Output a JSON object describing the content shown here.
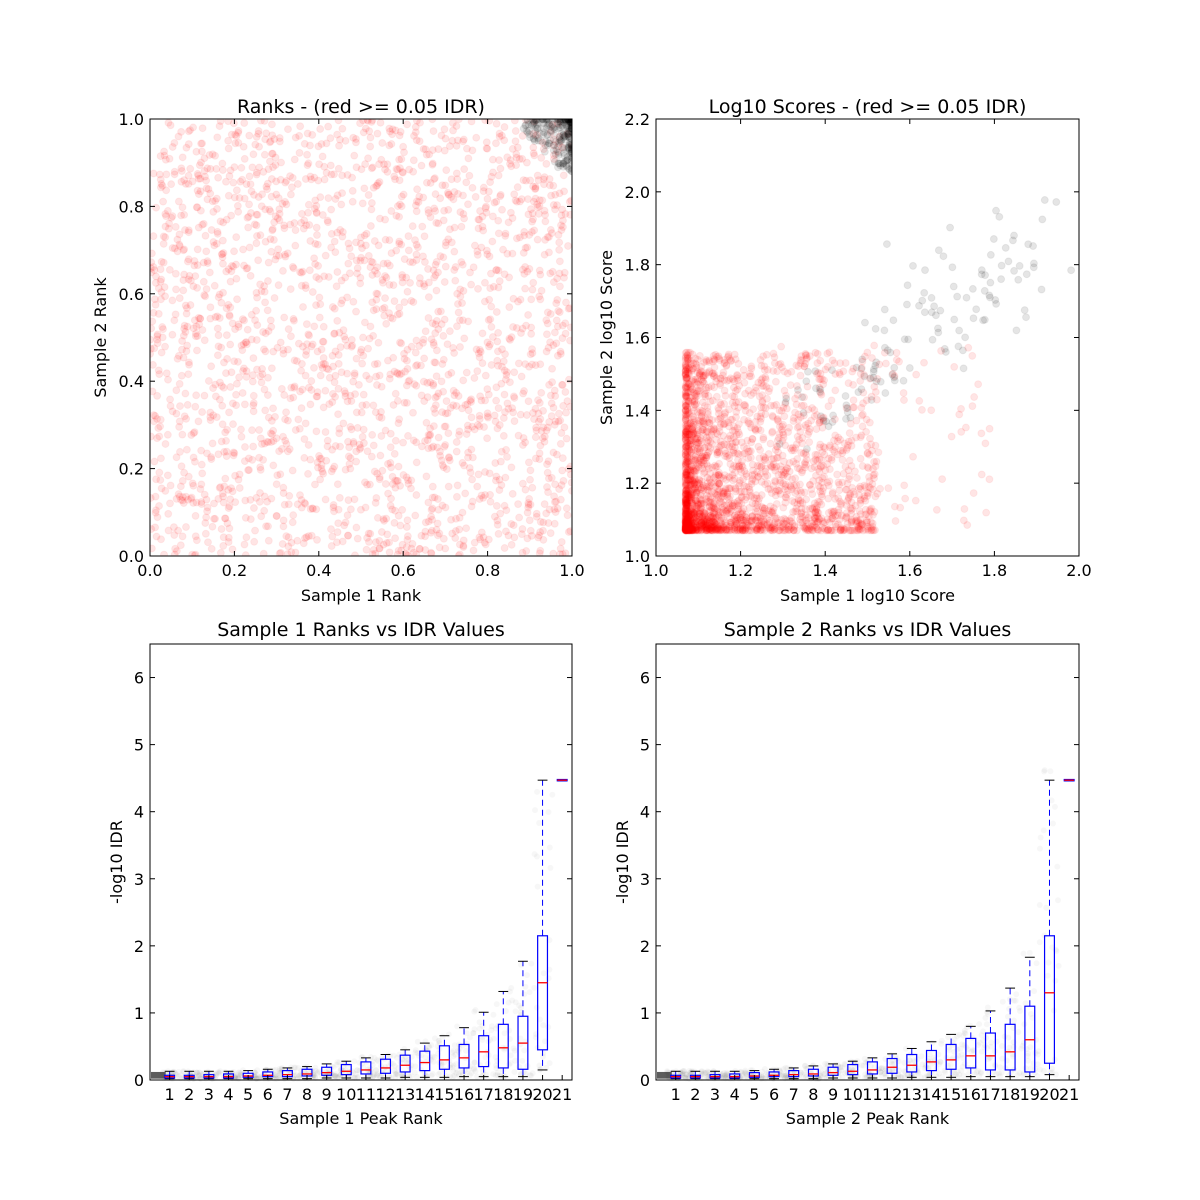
{
  "colors": {
    "pass": "#000000",
    "fail": "#ff0000",
    "box": "#0000ff",
    "median": "#ff0000",
    "frame": "#000000"
  },
  "chart_data": [
    {
      "id": "ranks",
      "type": "scatter",
      "title": "Ranks - (red >= 0.05 IDR)",
      "xlabel": "Sample 1 Rank",
      "ylabel": "Sample 2 Rank",
      "xlim": [
        0.0,
        1.0
      ],
      "ylim": [
        0.0,
        1.0
      ],
      "xticks": [
        "0.0",
        "0.2",
        "0.4",
        "0.6",
        "0.8",
        "1.0"
      ],
      "yticks": [
        "0.0",
        "0.2",
        "0.4",
        "0.6",
        "0.8",
        "1.0"
      ],
      "series": [
        {
          "color": "fail",
          "alpha": 0.1,
          "count": 2200,
          "distribution": "uniform",
          "x_range": [
            0.0,
            1.0
          ],
          "y_range": [
            0.0,
            1.0
          ]
        },
        {
          "color": "pass",
          "alpha": 0.1,
          "count": 260,
          "distribution": "corner-cluster",
          "x_range": [
            0.88,
            1.0
          ],
          "y_range": [
            0.88,
            1.0
          ]
        }
      ]
    },
    {
      "id": "scores",
      "type": "scatter",
      "title": "Log10 Scores - (red >= 0.05 IDR)",
      "xlabel": "Sample 1 log10 Score",
      "ylabel": "Sample 2 log10 Score",
      "xlim": [
        1.0,
        2.0
      ],
      "ylim": [
        1.0,
        2.2
      ],
      "xticks": [
        "1.0",
        "1.2",
        "1.4",
        "1.6",
        "1.8",
        "2.0"
      ],
      "yticks": [
        "1.0",
        "1.2",
        "1.4",
        "1.6",
        "1.8",
        "2.0",
        "2.2"
      ],
      "series": [
        {
          "color": "fail",
          "alpha": 0.1,
          "count": 2300,
          "distribution": "skewed",
          "x_range": [
            1.07,
            1.8
          ],
          "y_range": [
            1.07,
            1.86
          ]
        },
        {
          "color": "pass",
          "alpha": 0.1,
          "count": 130,
          "distribution": "diagonal",
          "x_range": [
            1.35,
            1.9
          ],
          "y_range": [
            1.38,
            1.98
          ]
        }
      ]
    },
    {
      "id": "idr1",
      "type": "box",
      "title": "Sample 1 Ranks vs IDR Values",
      "xlabel": "Sample 1 Peak Rank",
      "ylabel": "-log10 IDR",
      "ylim": [
        0,
        6.5
      ],
      "yticks": [
        "0",
        "1",
        "2",
        "3",
        "4",
        "5",
        "6"
      ],
      "categories": [
        "1",
        "2",
        "3",
        "4",
        "5",
        "6",
        "7",
        "8",
        "9",
        "10",
        "11",
        "12",
        "13",
        "14",
        "15",
        "16",
        "17",
        "18",
        "19",
        "20",
        "21"
      ],
      "boxes": [
        {
          "q1": 0.03,
          "med": 0.05,
          "q3": 0.07,
          "lo": 0.02,
          "hi": 0.13
        },
        {
          "q1": 0.03,
          "med": 0.05,
          "q3": 0.07,
          "lo": 0.02,
          "hi": 0.13
        },
        {
          "q1": 0.03,
          "med": 0.05,
          "q3": 0.08,
          "lo": 0.02,
          "hi": 0.13
        },
        {
          "q1": 0.03,
          "med": 0.05,
          "q3": 0.09,
          "lo": 0.02,
          "hi": 0.13
        },
        {
          "q1": 0.04,
          "med": 0.06,
          "q3": 0.1,
          "lo": 0.02,
          "hi": 0.14
        },
        {
          "q1": 0.05,
          "med": 0.07,
          "q3": 0.12,
          "lo": 0.02,
          "hi": 0.16
        },
        {
          "q1": 0.05,
          "med": 0.08,
          "q3": 0.14,
          "lo": 0.02,
          "hi": 0.18
        },
        {
          "q1": 0.06,
          "med": 0.09,
          "q3": 0.16,
          "lo": 0.02,
          "hi": 0.2
        },
        {
          "q1": 0.07,
          "med": 0.11,
          "q3": 0.19,
          "lo": 0.03,
          "hi": 0.24
        },
        {
          "q1": 0.08,
          "med": 0.13,
          "q3": 0.23,
          "lo": 0.03,
          "hi": 0.28
        },
        {
          "q1": 0.09,
          "med": 0.15,
          "q3": 0.27,
          "lo": 0.03,
          "hi": 0.33
        },
        {
          "q1": 0.1,
          "med": 0.18,
          "q3": 0.31,
          "lo": 0.03,
          "hi": 0.38
        },
        {
          "q1": 0.12,
          "med": 0.22,
          "q3": 0.37,
          "lo": 0.04,
          "hi": 0.45
        },
        {
          "q1": 0.14,
          "med": 0.26,
          "q3": 0.43,
          "lo": 0.04,
          "hi": 0.55
        },
        {
          "q1": 0.16,
          "med": 0.3,
          "q3": 0.51,
          "lo": 0.04,
          "hi": 0.66
        },
        {
          "q1": 0.18,
          "med": 0.33,
          "q3": 0.53,
          "lo": 0.05,
          "hi": 0.78
        },
        {
          "q1": 0.2,
          "med": 0.42,
          "q3": 0.66,
          "lo": 0.05,
          "hi": 1.01
        },
        {
          "q1": 0.18,
          "med": 0.48,
          "q3": 0.83,
          "lo": 0.05,
          "hi": 1.32
        },
        {
          "q1": 0.16,
          "med": 0.55,
          "q3": 0.95,
          "lo": 0.05,
          "hi": 1.77
        },
        {
          "q1": 0.45,
          "med": 1.45,
          "q3": 2.15,
          "lo": 0.15,
          "hi": 4.47
        },
        {
          "q1": 4.46,
          "med": 4.47,
          "q3": 4.48,
          "lo": 4.46,
          "hi": 4.48
        }
      ]
    },
    {
      "id": "idr2",
      "type": "box",
      "title": "Sample 2 Ranks vs IDR Values",
      "xlabel": "Sample 2 Peak Rank",
      "ylabel": "-log10 IDR",
      "ylim": [
        0,
        6.5
      ],
      "yticks": [
        "0",
        "1",
        "2",
        "3",
        "4",
        "5",
        "6"
      ],
      "categories": [
        "1",
        "2",
        "3",
        "4",
        "5",
        "6",
        "7",
        "8",
        "9",
        "10",
        "11",
        "12",
        "13",
        "14",
        "15",
        "16",
        "17",
        "18",
        "19",
        "20",
        "21"
      ],
      "boxes": [
        {
          "q1": 0.03,
          "med": 0.05,
          "q3": 0.07,
          "lo": 0.02,
          "hi": 0.13
        },
        {
          "q1": 0.03,
          "med": 0.05,
          "q3": 0.07,
          "lo": 0.02,
          "hi": 0.13
        },
        {
          "q1": 0.03,
          "med": 0.05,
          "q3": 0.08,
          "lo": 0.02,
          "hi": 0.13
        },
        {
          "q1": 0.03,
          "med": 0.05,
          "q3": 0.09,
          "lo": 0.02,
          "hi": 0.13
        },
        {
          "q1": 0.04,
          "med": 0.06,
          "q3": 0.11,
          "lo": 0.02,
          "hi": 0.14
        },
        {
          "q1": 0.05,
          "med": 0.07,
          "q3": 0.12,
          "lo": 0.02,
          "hi": 0.16
        },
        {
          "q1": 0.05,
          "med": 0.08,
          "q3": 0.14,
          "lo": 0.02,
          "hi": 0.18
        },
        {
          "q1": 0.06,
          "med": 0.09,
          "q3": 0.16,
          "lo": 0.02,
          "hi": 0.21
        },
        {
          "q1": 0.07,
          "med": 0.11,
          "q3": 0.19,
          "lo": 0.03,
          "hi": 0.24
        },
        {
          "q1": 0.08,
          "med": 0.13,
          "q3": 0.23,
          "lo": 0.03,
          "hi": 0.28
        },
        {
          "q1": 0.09,
          "med": 0.15,
          "q3": 0.27,
          "lo": 0.03,
          "hi": 0.33
        },
        {
          "q1": 0.1,
          "med": 0.19,
          "q3": 0.32,
          "lo": 0.03,
          "hi": 0.39
        },
        {
          "q1": 0.12,
          "med": 0.22,
          "q3": 0.38,
          "lo": 0.04,
          "hi": 0.47
        },
        {
          "q1": 0.14,
          "med": 0.27,
          "q3": 0.44,
          "lo": 0.04,
          "hi": 0.57
        },
        {
          "q1": 0.16,
          "med": 0.3,
          "q3": 0.53,
          "lo": 0.04,
          "hi": 0.68
        },
        {
          "q1": 0.18,
          "med": 0.36,
          "q3": 0.62,
          "lo": 0.05,
          "hi": 0.8
        },
        {
          "q1": 0.15,
          "med": 0.36,
          "q3": 0.7,
          "lo": 0.05,
          "hi": 1.03
        },
        {
          "q1": 0.15,
          "med": 0.42,
          "q3": 0.83,
          "lo": 0.05,
          "hi": 1.37
        },
        {
          "q1": 0.12,
          "med": 0.6,
          "q3": 1.1,
          "lo": 0.05,
          "hi": 1.83
        },
        {
          "q1": 0.25,
          "med": 1.3,
          "q3": 2.15,
          "lo": 0.08,
          "hi": 4.47
        },
        {
          "q1": 4.46,
          "med": 4.47,
          "q3": 4.48,
          "lo": 4.46,
          "hi": 4.48
        }
      ]
    }
  ]
}
